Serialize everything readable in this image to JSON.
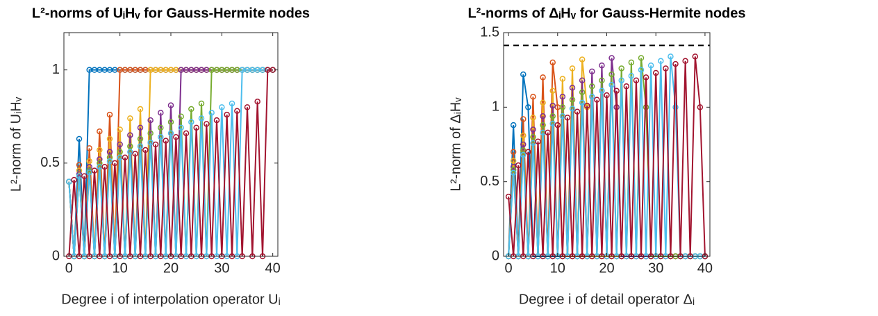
{
  "chart_data": [
    {
      "type": "line",
      "title": "L²-norms of UᵢHᵥ for Gauss-Hermite nodes",
      "x_label": "Degree i of interpolation operator Uᵢ",
      "y_label": "L²-norm of UᵢHᵥ",
      "xlim": [
        -1,
        41
      ],
      "xticks": [
        0,
        10,
        20,
        30,
        40
      ],
      "ylim": [
        0,
        1.2
      ],
      "yticks": [
        0,
        0.5,
        1
      ],
      "x": [
        0,
        1,
        2,
        3,
        4,
        5,
        6,
        7,
        8,
        9,
        10,
        11,
        12,
        13,
        14,
        15,
        16,
        17,
        18,
        19,
        20,
        21,
        22,
        23,
        24,
        25,
        26,
        27,
        28,
        29,
        30,
        31,
        32,
        33,
        34,
        35,
        36,
        37,
        38,
        39,
        40
      ],
      "series": [
        {
          "color": "#0072BD",
          "values": [
            0.4,
            0,
            0.63,
            0,
            1,
            1,
            1,
            1,
            1,
            1,
            1,
            1,
            1,
            1,
            1,
            1,
            1,
            1,
            1,
            1,
            1,
            1,
            1,
            1,
            1,
            1,
            1,
            1,
            1,
            1,
            1,
            1,
            1,
            1,
            1,
            1,
            1,
            1,
            1,
            1,
            1
          ]
        },
        {
          "color": "#D95319",
          "values": [
            0.4,
            0,
            0.49,
            0,
            0.58,
            0,
            0.67,
            0,
            0.76,
            0,
            1,
            1,
            1,
            1,
            1,
            1,
            1,
            1,
            1,
            1,
            1,
            1,
            1,
            1,
            1,
            1,
            1,
            1,
            1,
            1,
            1,
            1,
            1,
            1,
            1,
            1,
            1,
            1,
            1,
            1,
            1
          ]
        },
        {
          "color": "#EDB120",
          "values": [
            0.4,
            0,
            0.46,
            0,
            0.51,
            0,
            0.57,
            0,
            0.63,
            0,
            0.68,
            0,
            0.74,
            0,
            0.79,
            0,
            1,
            1,
            1,
            1,
            1,
            1,
            1,
            1,
            1,
            1,
            1,
            1,
            1,
            1,
            1,
            1,
            1,
            1,
            1,
            1,
            1,
            1,
            1,
            1,
            1
          ]
        },
        {
          "color": "#7E2F8E",
          "values": [
            0.4,
            0,
            0.44,
            0,
            0.48,
            0,
            0.52,
            0,
            0.56,
            0,
            0.6,
            0,
            0.65,
            0,
            0.69,
            0,
            0.73,
            0,
            0.77,
            0,
            0.81,
            0,
            1,
            1,
            1,
            1,
            1,
            1,
            1,
            1,
            1,
            1,
            1,
            1,
            1,
            1,
            1,
            1,
            1,
            1,
            1
          ]
        },
        {
          "color": "#77AC30",
          "values": [
            0.4,
            0,
            0.43,
            0,
            0.46,
            0,
            0.5,
            0,
            0.53,
            0,
            0.56,
            0,
            0.59,
            0,
            0.63,
            0,
            0.66,
            0,
            0.69,
            0,
            0.72,
            0,
            0.75,
            0,
            0.79,
            0,
            0.82,
            0,
            1,
            1,
            1,
            1,
            1,
            1,
            1,
            1,
            1,
            1,
            1,
            1,
            1
          ]
        },
        {
          "color": "#4DBEEE",
          "values": [
            0.4,
            0,
            0.43,
            0,
            0.45,
            0,
            0.48,
            0,
            0.51,
            0,
            0.53,
            0,
            0.56,
            0,
            0.59,
            0,
            0.61,
            0,
            0.64,
            0,
            0.66,
            0,
            0.69,
            0,
            0.72,
            0,
            0.74,
            0,
            0.77,
            0,
            0.8,
            0,
            0.82,
            0,
            1,
            1,
            1,
            1,
            1,
            1,
            1
          ]
        },
        {
          "color": "#A2142F",
          "values": [
            0,
            0.41,
            0,
            0.43,
            0,
            0.46,
            0,
            0.48,
            0,
            0.5,
            0,
            0.53,
            0,
            0.55,
            0,
            0.57,
            0,
            0.6,
            0,
            0.62,
            0,
            0.64,
            0,
            0.66,
            0,
            0.69,
            0,
            0.71,
            0,
            0.73,
            0,
            0.76,
            0,
            0.78,
            0,
            0.8,
            0,
            0.83,
            0,
            1,
            1
          ]
        }
      ]
    },
    {
      "type": "line",
      "title": "L²-norms of ΔᵢHᵥ for Gauss-Hermite nodes",
      "x_label": "Degree i of detail operator Δᵢ",
      "y_label": "L²-norm of ΔᵢHᵥ",
      "xlim": [
        -1,
        41
      ],
      "xticks": [
        0,
        10,
        20,
        30,
        40
      ],
      "ylim": [
        0,
        1.5
      ],
      "yticks": [
        0,
        0.5,
        1,
        1.5
      ],
      "reference_line": 1.4142,
      "x": [
        0,
        1,
        2,
        3,
        4,
        5,
        6,
        7,
        8,
        9,
        10,
        11,
        12,
        13,
        14,
        15,
        16,
        17,
        18,
        19,
        20,
        21,
        22,
        23,
        24,
        25,
        26,
        27,
        28,
        29,
        30,
        31,
        32,
        33,
        34,
        35,
        36,
        37,
        38,
        39,
        40
      ],
      "series": [
        {
          "color": "#0072BD",
          "values": [
            0,
            0.88,
            0,
            1.22,
            1,
            0,
            0,
            0,
            0,
            0,
            0,
            0,
            0,
            0,
            0,
            0,
            0,
            0,
            0,
            0,
            0,
            0,
            0,
            0,
            0,
            0,
            0,
            0,
            0,
            0,
            0,
            0,
            0,
            0,
            0,
            0,
            0,
            0,
            0,
            0,
            0
          ]
        },
        {
          "color": "#D95319",
          "values": [
            0,
            0.7,
            0,
            0.92,
            0,
            1.07,
            0,
            1.2,
            0,
            1.3,
            1,
            0,
            0,
            0,
            0,
            0,
            0,
            0,
            0,
            0,
            0,
            0,
            0,
            0,
            0,
            0,
            0,
            0,
            0,
            0,
            0,
            0,
            0,
            0,
            0,
            0,
            0,
            0,
            0,
            0,
            0
          ]
        },
        {
          "color": "#EDB120",
          "values": [
            0,
            0.64,
            0,
            0.81,
            0,
            0.93,
            0,
            1.03,
            0,
            1.11,
            0,
            1.19,
            0,
            1.26,
            0,
            1.32,
            1,
            0,
            0,
            0,
            0,
            0,
            0,
            0,
            0,
            0,
            0,
            0,
            0,
            0,
            0,
            0,
            0,
            0,
            0,
            0,
            0,
            0,
            0,
            0,
            0
          ]
        },
        {
          "color": "#7E2F8E",
          "values": [
            0,
            0.6,
            0,
            0.75,
            0,
            0.85,
            0,
            0.94,
            0,
            1.01,
            0,
            1.07,
            0,
            1.13,
            0,
            1.18,
            0,
            1.24,
            0,
            1.28,
            0,
            1.33,
            1,
            0,
            0,
            0,
            0,
            0,
            0,
            0,
            0,
            0,
            0,
            0,
            0,
            0,
            0,
            0,
            0,
            0,
            0
          ]
        },
        {
          "color": "#77AC30",
          "values": [
            0,
            0.58,
            0,
            0.71,
            0,
            0.8,
            0,
            0.88,
            0,
            0.94,
            0,
            1,
            0,
            1.05,
            0,
            1.1,
            0,
            1.14,
            0,
            1.18,
            0,
            1.22,
            0,
            1.26,
            0,
            1.3,
            0,
            1.33,
            1,
            0,
            0,
            0,
            0,
            0,
            0,
            0,
            0,
            0,
            0,
            0,
            0
          ]
        },
        {
          "color": "#4DBEEE",
          "values": [
            0,
            0.56,
            0,
            0.68,
            0,
            0.76,
            0,
            0.83,
            0,
            0.89,
            0,
            0.94,
            0,
            0.99,
            0,
            1.03,
            0,
            1.07,
            0,
            1.11,
            0,
            1.15,
            0,
            1.18,
            0,
            1.21,
            0,
            1.25,
            0,
            1.28,
            0,
            1.31,
            0,
            1.34,
            1,
            0,
            0,
            0,
            0,
            0,
            0
          ]
        },
        {
          "color": "#A2142F",
          "values": [
            0.4,
            0,
            0.61,
            0,
            0.7,
            0,
            0.77,
            0,
            0.83,
            0,
            0.88,
            0,
            0.93,
            0,
            0.97,
            0,
            1.01,
            0,
            1.05,
            0,
            1.08,
            0,
            1.11,
            0,
            1.14,
            0,
            1.18,
            0,
            1.2,
            0,
            1.23,
            0,
            1.26,
            0,
            1.29,
            0,
            1.31,
            0,
            1.34,
            1,
            0
          ]
        }
      ]
    }
  ]
}
